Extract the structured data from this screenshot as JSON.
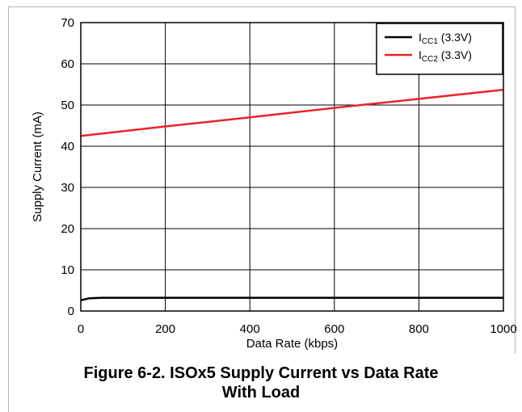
{
  "chart_data": {
    "type": "line",
    "xlabel": "Data Rate (kbps)",
    "ylabel": "Supply Current (mA)",
    "xlim": [
      0,
      1000
    ],
    "ylim": [
      0,
      70
    ],
    "x_ticks": [
      0,
      200,
      400,
      600,
      800,
      1000
    ],
    "y_ticks": [
      0,
      10,
      20,
      30,
      40,
      50,
      60,
      70
    ],
    "grid": true,
    "legend_position": "top-right",
    "series": [
      {
        "name_main": "I",
        "name_sub": "CC1",
        "name_suffix": " (3.3V)",
        "color": "#000000",
        "x": [
          0,
          20,
          50,
          100,
          200,
          400,
          600,
          800,
          1000
        ],
        "y": [
          2.6,
          3.1,
          3.2,
          3.2,
          3.2,
          3.2,
          3.2,
          3.2,
          3.2
        ]
      },
      {
        "name_main": "I",
        "name_sub": "CC2",
        "name_suffix": " (3.3V)",
        "color": "#e8242b",
        "x": [
          0,
          200,
          400,
          600,
          800,
          1000
        ],
        "y": [
          42.5,
          44.8,
          47.0,
          49.3,
          51.5,
          53.7
        ]
      }
    ]
  },
  "caption": {
    "line1": "Figure 6-2. ISOx5 Supply Current vs Data Rate",
    "line2": "With Load"
  }
}
